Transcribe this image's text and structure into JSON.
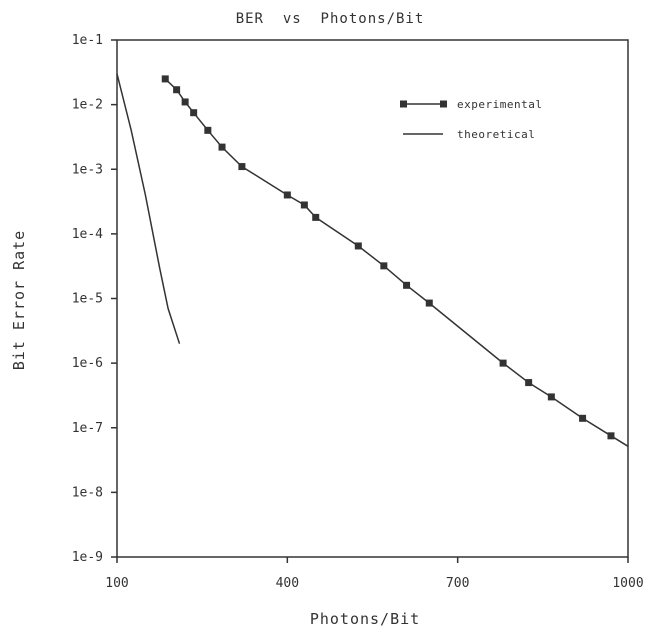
{
  "chart_data": {
    "type": "line",
    "title": "BER  vs  Photons/Bit",
    "xlabel": "Photons/Bit",
    "ylabel": "Bit Error Rate",
    "xlim": [
      100,
      1000
    ],
    "ylim": [
      1e-09,
      0.1
    ],
    "yscale": "log",
    "x_ticks": [
      100,
      400,
      700,
      1000
    ],
    "x_tick_labels": [
      "100",
      "400",
      "700",
      "1000"
    ],
    "y_ticks": [
      0.1,
      0.01,
      0.001,
      0.0001,
      1e-05,
      1e-06,
      1e-07,
      1e-08,
      1e-09
    ],
    "y_tick_labels": [
      "1e-1",
      "1e-2",
      "1e-3",
      "1e-4",
      "1e-5",
      "1e-6",
      "1e-7",
      "1e-8",
      "1e-9"
    ],
    "legend_position": "top-right",
    "grid": false,
    "series": [
      {
        "name": "experimental",
        "style": "line-with-square-markers",
        "color": "#333333",
        "x": [
          185,
          205,
          220,
          235,
          260,
          285,
          320,
          400,
          430,
          450,
          525,
          570,
          610,
          650,
          780,
          825,
          865,
          920,
          970
        ],
        "y": [
          0.025,
          0.017,
          0.011,
          0.0075,
          0.004,
          0.0022,
          0.0011,
          0.0004,
          0.00028,
          0.00018,
          6.5e-05,
          3.2e-05,
          1.6e-05,
          8.5e-06,
          1e-06,
          5e-07,
          3e-07,
          1.4e-07,
          7.5e-08
        ]
      },
      {
        "name": "theoretical",
        "style": "line",
        "color": "#333333",
        "x": [
          100,
          125,
          150,
          175,
          190,
          210
        ],
        "y": [
          0.03,
          0.004,
          0.0004,
          3e-05,
          7e-06,
          2e-06
        ]
      }
    ]
  }
}
